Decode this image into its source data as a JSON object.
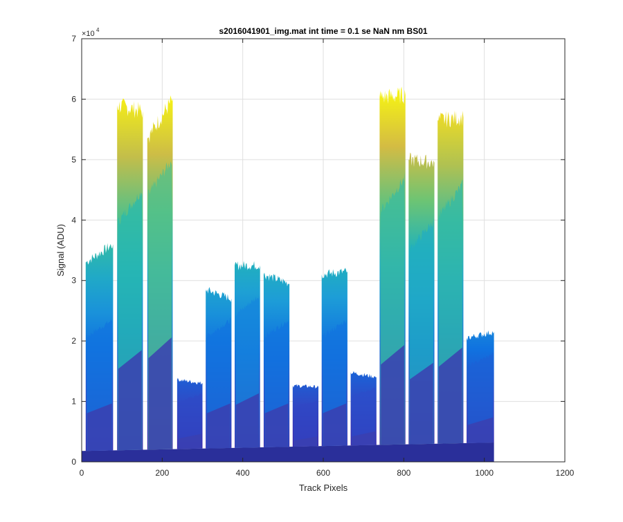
{
  "chart_data": {
    "type": "area",
    "title": "s2016041901_img.mat int time = 0.1 se  NaN nm BS01",
    "xlabel": "Track Pixels",
    "ylabel": "Signal (ADU)",
    "y_exponent_label": "×10",
    "y_exponent_power": "4",
    "xlim": [
      0,
      1200
    ],
    "ylim": [
      0,
      70000
    ],
    "x_ticks": [
      0,
      200,
      400,
      600,
      800,
      1000,
      1200
    ],
    "x_tick_labels": [
      "0",
      "200",
      "400",
      "600",
      "800",
      "1000",
      "1200"
    ],
    "y_ticks": [
      0,
      10000,
      20000,
      30000,
      40000,
      50000,
      60000,
      70000
    ],
    "y_tick_labels": [
      "0",
      "1",
      "2",
      "3",
      "4",
      "5",
      "6",
      "7"
    ],
    "grid": true,
    "colormap": [
      "#3e26a8",
      "#2f4ac6",
      "#0f6fe0",
      "#1d9dd8",
      "#24b8b2",
      "#7fc764",
      "#e7b93c",
      "#f9fb0e"
    ],
    "baseline": {
      "x": [
        0,
        1024
      ],
      "y": [
        1800,
        3200
      ]
    },
    "bands": [
      {
        "x": [
          10,
          78
        ],
        "y_start": 33000,
        "y_end": 36000,
        "mid_level": 23000
      },
      {
        "x": [
          88,
          152
        ],
        "y_start": 59000,
        "y_end": 58000,
        "mid_level": 44000
      },
      {
        "x": [
          163,
          226
        ],
        "y_start": 53500,
        "y_end": 60000,
        "mid_level": 49000
      },
      {
        "x": [
          237,
          300
        ],
        "y_start": 13600,
        "y_end": 13000,
        "mid_level": 11000
      },
      {
        "x": [
          308,
          372
        ],
        "y_start": 28500,
        "y_end": 27000,
        "mid_level": 23000
      },
      {
        "x": [
          380,
          443
        ],
        "y_start": 32500,
        "y_end": 32500,
        "mid_level": 27000
      },
      {
        "x": [
          452,
          516
        ],
        "y_start": 31000,
        "y_end": 29500,
        "mid_level": 23000
      },
      {
        "x": [
          524,
          588
        ],
        "y_start": 12600,
        "y_end": 12400,
        "mid_level": 10000
      },
      {
        "x": [
          596,
          660
        ],
        "y_start": 31000,
        "y_end": 31500,
        "mid_level": 23000
      },
      {
        "x": [
          668,
          732
        ],
        "y_start": 14800,
        "y_end": 14000,
        "mid_level": 12000
      },
      {
        "x": [
          740,
          804
        ],
        "y_start": 60300,
        "y_end": 60700,
        "mid_level": 46000
      },
      {
        "x": [
          812,
          876
        ],
        "y_start": 50000,
        "y_end": 49500,
        "mid_level": 39000
      },
      {
        "x": [
          884,
          948
        ],
        "y_start": 56500,
        "y_end": 57000,
        "mid_level": 45000
      },
      {
        "x": [
          956,
          1024
        ],
        "y_start": 20500,
        "y_end": 21500,
        "mid_level": 17500
      }
    ]
  }
}
